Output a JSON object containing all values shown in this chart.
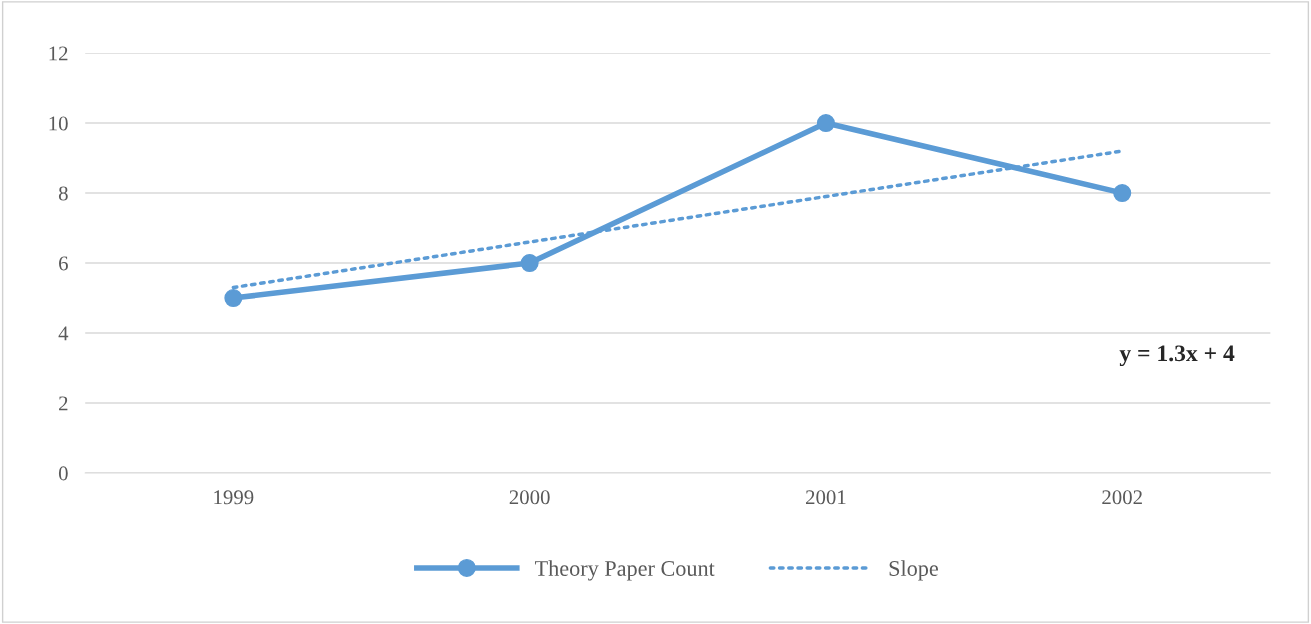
{
  "chart_data": {
    "type": "line",
    "categories": [
      "1999",
      "2000",
      "2001",
      "2002"
    ],
    "series": [
      {
        "name": "Theory Paper Count",
        "color": "#5b9bd5",
        "values": [
          5,
          6,
          10,
          8
        ],
        "marker": "circle",
        "line_style": "solid"
      },
      {
        "name": "Slope",
        "color": "#5b9bd5",
        "values": [
          5.3,
          6.6,
          7.9,
          9.2
        ],
        "marker": "none",
        "line_style": "dotted"
      }
    ],
    "ylim": [
      0,
      12
    ],
    "yticks": [
      0,
      2,
      4,
      6,
      8,
      10,
      12
    ],
    "grid": "y",
    "legend": "bottom",
    "annotations": [
      "y = 1.3x + 4"
    ]
  }
}
